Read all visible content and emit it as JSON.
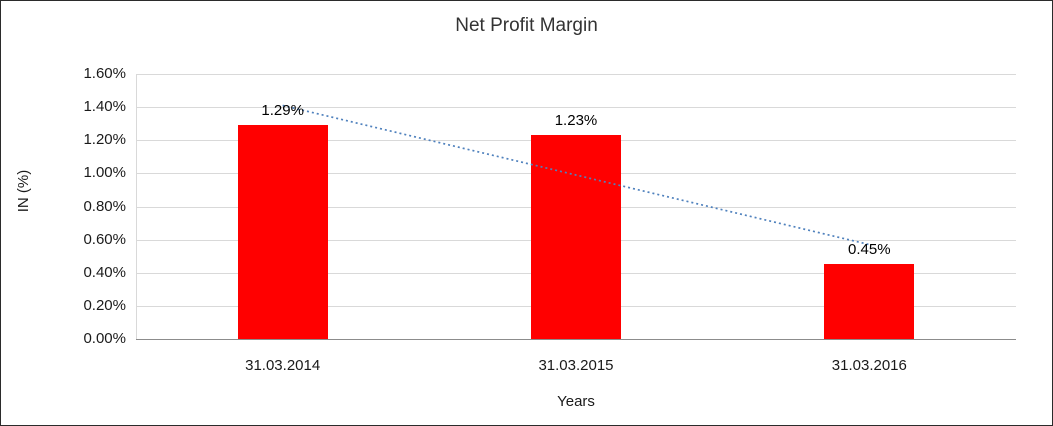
{
  "chart_data": {
    "type": "bar",
    "title": "Net Profit Margin",
    "xlabel": "Years",
    "ylabel": "IN (%)",
    "categories": [
      "31.03.2014",
      "31.03.2015",
      "31.03.2016"
    ],
    "values": [
      1.29,
      1.23,
      0.45
    ],
    "data_labels": [
      "1.29%",
      "1.23%",
      "0.45%"
    ],
    "y_ticks": [
      "0.00%",
      "0.20%",
      "0.40%",
      "0.60%",
      "0.80%",
      "1.00%",
      "1.20%",
      "1.40%",
      "1.60%"
    ],
    "ylim": [
      0,
      1.6
    ],
    "grid": true,
    "legend": "none",
    "bar_color": "#ff0000",
    "gridline_color": "#d9d9d9",
    "trendline": {
      "type": "linear",
      "color": "#4f81bd",
      "style": "dotted"
    }
  }
}
